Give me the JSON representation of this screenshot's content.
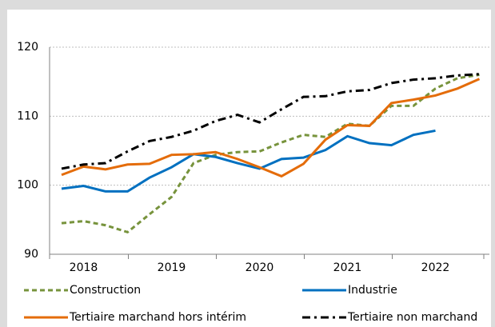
{
  "chart_data": {
    "type": "line",
    "categories": [
      null,
      "2018",
      null,
      null,
      null,
      "2019",
      null,
      null,
      null,
      "2020",
      null,
      null,
      null,
      "2021",
      null,
      null,
      null,
      "2022",
      null,
      null
    ],
    "series": [
      {
        "name": "Construction",
        "color": "#77933c",
        "dash": "dashed",
        "values": [
          94.5,
          94.8,
          94.2,
          93.2,
          95.8,
          98.3,
          103.2,
          104.4,
          104.8,
          104.9,
          106.2,
          107.3,
          107.0,
          108.9,
          108.6,
          111.5,
          111.5,
          114.0,
          115.5,
          116.0
        ]
      },
      {
        "name": "Industrie",
        "color": "#0070c0",
        "dash": "solid",
        "values": [
          99.5,
          99.9,
          99.1,
          99.1,
          101.1,
          102.6,
          104.5,
          104.1,
          103.2,
          102.4,
          103.8,
          104.0,
          105.1,
          107.1,
          106.1,
          105.8,
          107.3,
          107.9,
          null,
          null
        ]
      },
      {
        "name": "Tertiaire marchand hors intérim",
        "color": "#e46c0a",
        "dash": "solid",
        "values": [
          101.5,
          102.7,
          102.3,
          103.0,
          103.1,
          104.4,
          104.5,
          104.8,
          103.8,
          102.6,
          101.3,
          103.1,
          106.6,
          108.7,
          108.6,
          111.9,
          112.4,
          113.0,
          114.0,
          115.4
        ]
      },
      {
        "name": "Tertiaire non marchand",
        "color": "#000000",
        "dash": "dashdot",
        "values": [
          102.4,
          103.0,
          103.2,
          104.9,
          106.4,
          107.0,
          107.9,
          109.3,
          110.2,
          109.1,
          111.0,
          112.8,
          112.9,
          113.6,
          113.8,
          114.8,
          115.3,
          115.5,
          115.9,
          116.1
        ]
      }
    ],
    "ylim": [
      90,
      120
    ],
    "yticks": [
      90,
      100,
      110,
      120
    ],
    "grid": true
  }
}
